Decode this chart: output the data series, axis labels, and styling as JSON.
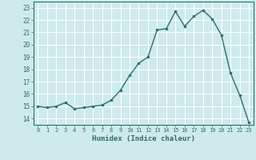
{
  "x": [
    0,
    1,
    2,
    3,
    4,
    5,
    6,
    7,
    8,
    9,
    10,
    11,
    12,
    13,
    14,
    15,
    16,
    17,
    18,
    19,
    20,
    21,
    22,
    23
  ],
  "y": [
    15.0,
    14.9,
    15.0,
    15.3,
    14.8,
    14.9,
    15.0,
    15.1,
    15.5,
    16.3,
    17.5,
    18.5,
    19.0,
    21.2,
    21.3,
    22.7,
    21.5,
    22.3,
    22.8,
    22.1,
    20.8,
    17.7,
    15.9,
    13.7
  ],
  "line_color": "#2d6e6e",
  "marker": ".",
  "markersize": 3,
  "linewidth": 1.0,
  "xlabel": "Humidex (Indice chaleur)",
  "ylabel_ticks": [
    14,
    15,
    16,
    17,
    18,
    19,
    20,
    21,
    22,
    23
  ],
  "xlim": [
    -0.5,
    23.5
  ],
  "ylim": [
    13.5,
    23.5
  ],
  "bg_color": "#ceeaea",
  "grid_color": "#ffffff",
  "tick_color": "#2d6e6e",
  "label_color": "#2d6e6e"
}
